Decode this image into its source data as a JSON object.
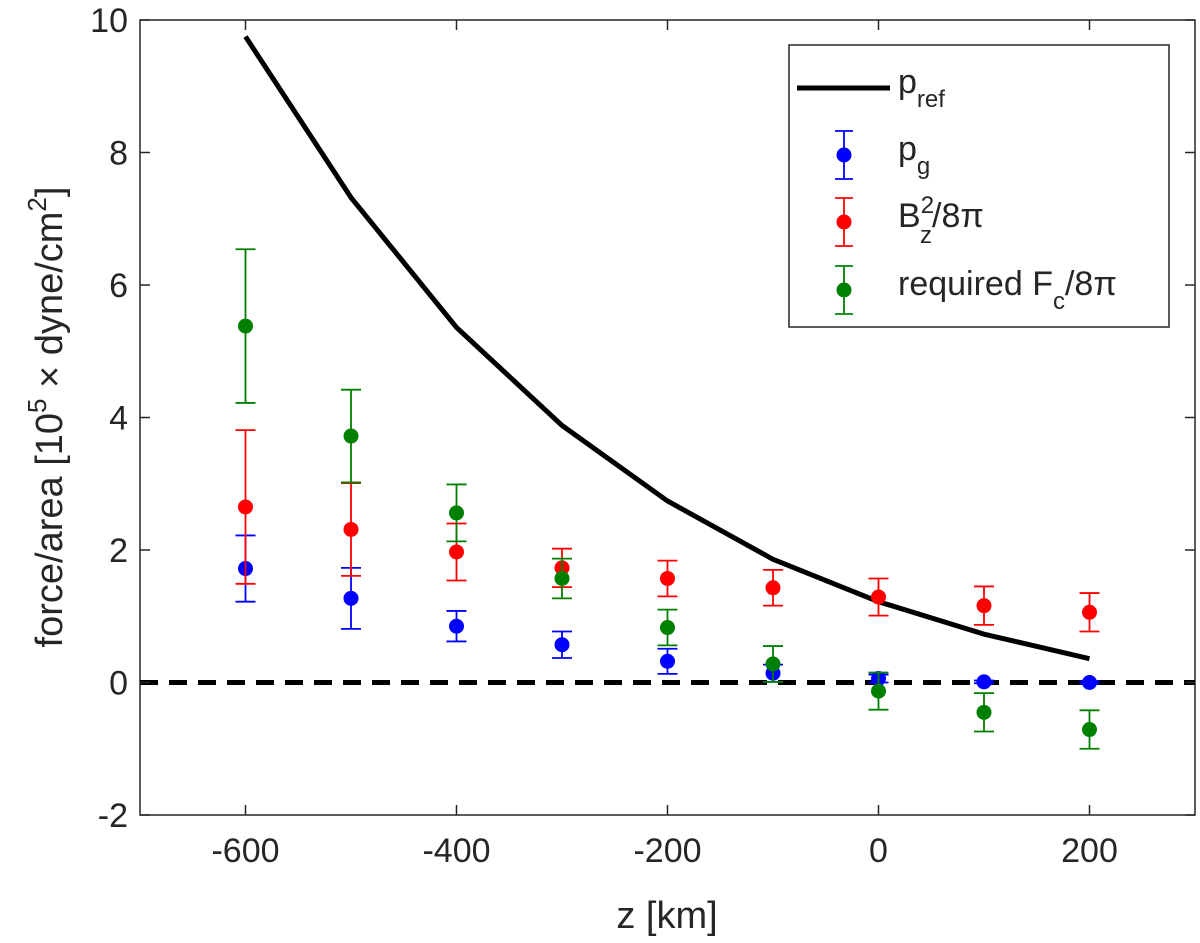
{
  "chart_data": {
    "type": "scatter",
    "xlabel": "z [km]",
    "ylabel": {
      "prefix": "force/area [10",
      "exp1": "5",
      "middle": " × dyne/cm",
      "exp2": "2",
      "suffix": "]"
    },
    "xlim": [
      -700,
      300
    ],
    "ylim": [
      -2,
      10
    ],
    "xticks": [
      -600,
      -400,
      -200,
      0,
      200
    ],
    "yticks": [
      -2,
      0,
      2,
      4,
      6,
      8,
      10
    ],
    "x_tick_labels": [
      "-600",
      "-400",
      "-200",
      "0",
      "200"
    ],
    "y_tick_labels": [
      "-2",
      "0",
      "2",
      "4",
      "6",
      "8",
      "10"
    ],
    "grid": false,
    "legend_position": "top-right",
    "zero_line": {
      "y": 0,
      "style": "dashed",
      "color": "#000000"
    },
    "series": [
      {
        "name": "p_ref",
        "kind": "line",
        "color": "#000000",
        "x": [
          -600,
          -500,
          -400,
          -300,
          -200,
          -100,
          0,
          100,
          200
        ],
        "y": [
          9.75,
          7.32,
          5.36,
          3.88,
          2.74,
          1.86,
          1.22,
          0.73,
          0.36
        ]
      },
      {
        "name": "p_g",
        "kind": "errorbar",
        "color": "#0000ff",
        "x": [
          -600,
          -500,
          -400,
          -300,
          -200,
          -100,
          0,
          100,
          200
        ],
        "y": [
          1.72,
          1.27,
          0.85,
          0.57,
          0.32,
          0.14,
          0.06,
          0.01,
          0.0
        ],
        "err": [
          0.5,
          0.46,
          0.23,
          0.2,
          0.19,
          0.13,
          0.06,
          0.02,
          0.02
        ]
      },
      {
        "name": "Bz^2/8pi",
        "kind": "errorbar",
        "color": "#ff0000",
        "x": [
          -600,
          -500,
          -400,
          -300,
          -200,
          -100,
          0,
          100,
          200
        ],
        "y": [
          2.65,
          2.31,
          1.97,
          1.73,
          1.57,
          1.43,
          1.29,
          1.16,
          1.06
        ],
        "err": [
          1.16,
          0.7,
          0.43,
          0.29,
          0.27,
          0.27,
          0.28,
          0.29,
          0.29
        ]
      },
      {
        "name": "required Fc/8pi",
        "kind": "errorbar",
        "color": "#008000",
        "x": [
          -600,
          -500,
          -400,
          -300,
          -200,
          -100,
          0,
          100,
          200
        ],
        "y": [
          5.38,
          3.72,
          2.56,
          1.57,
          0.83,
          0.28,
          -0.13,
          -0.45,
          -0.71
        ],
        "err": [
          1.16,
          0.7,
          0.43,
          0.3,
          0.27,
          0.27,
          0.28,
          0.29,
          0.29
        ]
      }
    ],
    "legend": [
      {
        "key": "p_ref",
        "base": "p",
        "sub": "ref",
        "sup": "",
        "tail": ""
      },
      {
        "key": "p_g",
        "base": "p",
        "sub": "g",
        "sup": "",
        "tail": ""
      },
      {
        "key": "Bz^2/8pi",
        "base": "B",
        "sub": "z",
        "sup": "2",
        "tail": "/8π"
      },
      {
        "key": "required Fc/8pi",
        "base": "required F",
        "sub": "c",
        "sup": "",
        "tail": "/8π"
      }
    ]
  }
}
